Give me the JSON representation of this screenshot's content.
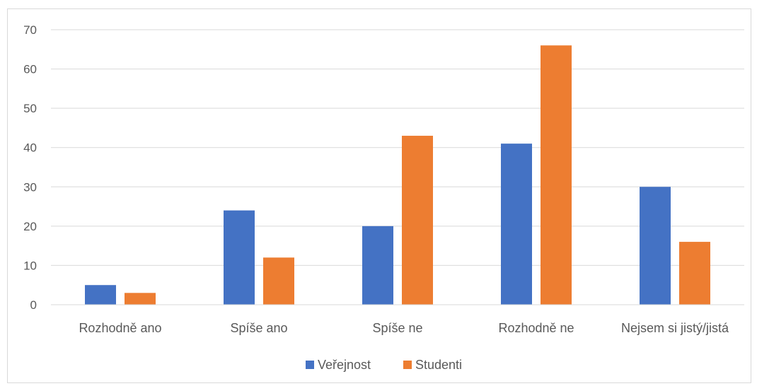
{
  "chart_data": {
    "type": "bar",
    "title": "",
    "xlabel": "",
    "ylabel": "",
    "categories": [
      "Rozhodně ano",
      "Spíše ano",
      "Spíše ne",
      "Rozhodně ne",
      "Nejsem si jistý/jistá"
    ],
    "series": [
      {
        "name": "Veřejnost",
        "color": "#4472C4",
        "values": [
          5,
          24,
          20,
          41,
          30
        ]
      },
      {
        "name": "Studenti",
        "color": "#ED7D31",
        "values": [
          3,
          12,
          43,
          66,
          16
        ]
      }
    ],
    "ylim": [
      0,
      70
    ],
    "yticks": [
      "0",
      "10",
      "20",
      "30",
      "40",
      "50",
      "60",
      "70"
    ],
    "grid": true,
    "legend_position": "bottom"
  }
}
